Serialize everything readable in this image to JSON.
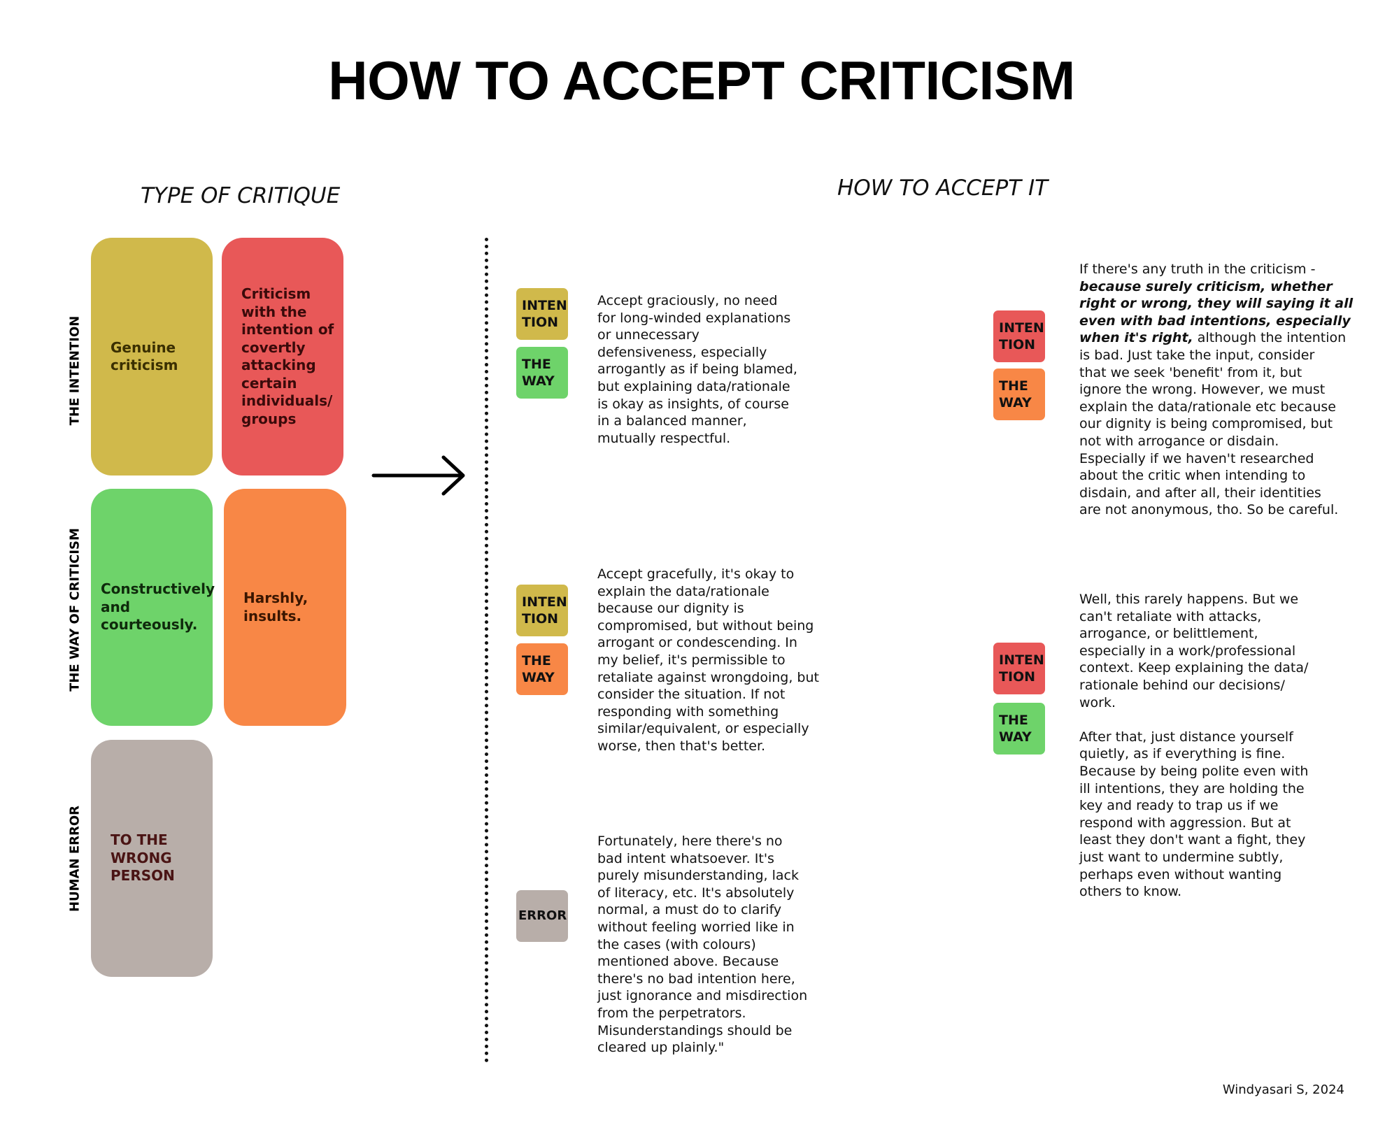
{
  "title": "HOW TO ACCEPT CRITICISM",
  "left_heading": "TYPE OF CRITIQUE",
  "right_heading": "HOW TO ACCEPT IT",
  "row_labels": {
    "intention": "THE INTENTION",
    "way": "THE WAY OF CRITICISM",
    "error": "HUMAN ERROR"
  },
  "critique_boxes": {
    "genuine": {
      "label": "Genuine criticism",
      "color": "#d0b94b"
    },
    "covert": {
      "label": "Criticism with the intention of covertly attacking certain individuals/ groups",
      "color": "#e85858"
    },
    "constructive": {
      "label": "Constructively and courteously.",
      "color": "#6ed36a"
    },
    "harsh": {
      "label": "Harshly, insults.",
      "color": "#f88746"
    },
    "wrong_person": {
      "label": "TO THE WRONG PERSON",
      "color": "#b8aea9"
    }
  },
  "badges": {
    "intention": "INTEN TION",
    "way": "THE WAY",
    "error": "ERROR"
  },
  "advice": {
    "genuine_constructive": [
      "Accept graciously, no need",
      "for long-winded explanations",
      "or unnecessary",
      "defensiveness, especially",
      "arrogantly as if being blamed,",
      "but explaining data/rationale",
      "is okay as insights, of course",
      "in a balanced manner,",
      "mutually respectful."
    ],
    "genuine_harsh": [
      "Accept gracefully, it's okay to",
      "explain the data/rationale",
      "because our dignity is",
      "compromised, but without being",
      "arrogant or condescending. In",
      "my belief, it's permissible to",
      "retaliate against wrongdoing, but",
      "consider the situation. If not",
      "responding with something",
      "similar/equivalent, or especially",
      "worse, then that's better."
    ],
    "error": [
      "Fortunately, here there's no",
      "bad intent whatsoever. It's",
      "purely misunderstanding, lack",
      "of literacy, etc. It's absolutely",
      "normal, a must do to clarify",
      "without feeling worried like in",
      "the cases (with colours)",
      "mentioned above. Because",
      "there's no bad intention here,",
      "just ignorance and misdirection",
      "from the perpetrators.",
      "Misunderstandings should be",
      "cleared up plainly.\""
    ],
    "covert_harsh": [
      "If there's any truth in the criticism -",
      [
        [
          "because surely criticism, whether",
          "bi"
        ]
      ],
      [
        [
          "right or wrong, they will saying it all",
          "bi"
        ]
      ],
      [
        [
          "even with bad intentions, especially",
          "bi"
        ]
      ],
      [
        [
          "when it's right,",
          "bi"
        ],
        [
          " although the intention",
          ""
        ]
      ],
      "is bad. Just take the input, consider",
      "that we seek 'benefit' from it, but",
      "ignore the wrong. However, we must",
      "explain the data/rationale etc because",
      "our dignity is being compromised, but",
      "not with arrogance or disdain.",
      "Especially if we haven't researched",
      "about the critic when intending to",
      "disdain, and after all, their identities",
      "are not anonymous, tho. So be careful."
    ],
    "covert_constructive": [
      "Well, this rarely happens. But we",
      "can't retaliate with attacks,",
      "arrogance, or belittlement,",
      "especially in a work/professional",
      "context. Keep explaining the data/",
      "rationale behind our decisions/",
      "work.",
      "",
      "After that, just distance yourself",
      "quietly, as if everything is fine.",
      "Because by being polite even with",
      "ill intentions, they are holding the",
      "key and ready to trap us if we",
      "respond with aggression. But at",
      "least they don't want a fight, they",
      "just want to undermine subtly,",
      "perhaps even without wanting",
      "others to know."
    ]
  },
  "signature": "Windyasari S, 2024",
  "arrow_icon": "right-arrow",
  "text_colors": {
    "genuine": "#3a2f00",
    "covert": "#3a0a0a",
    "wrong_person": "#4a1414"
  }
}
